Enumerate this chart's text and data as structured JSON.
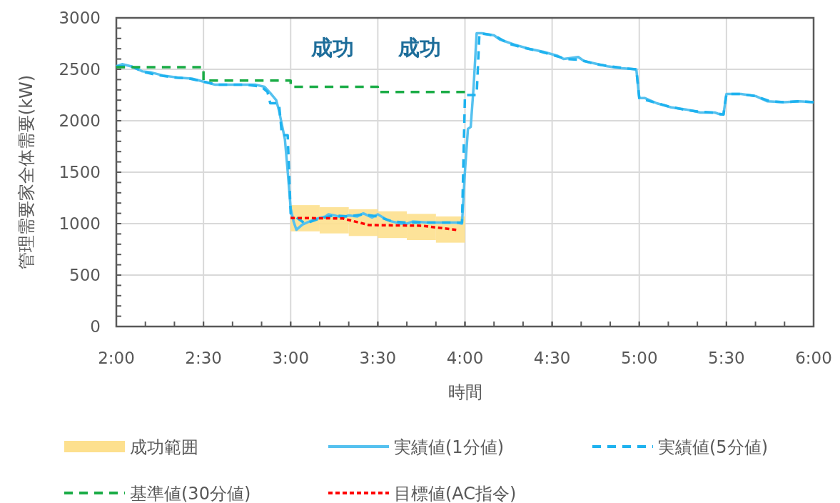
{
  "chart_data": {
    "type": "line",
    "xlabel": "時間",
    "ylabel": "管理需要家全体需要(kW)",
    "xlim": [
      2,
      6
    ],
    "ylim": [
      0,
      3000
    ],
    "xticks": [
      {
        "value": 2,
        "label": "2:00"
      },
      {
        "value": 2.5,
        "label": "2:30"
      },
      {
        "value": 3,
        "label": "3:00"
      },
      {
        "value": 3.5,
        "label": "3:30"
      },
      {
        "value": 4,
        "label": "4:00"
      },
      {
        "value": 4.5,
        "label": "4:30"
      },
      {
        "value": 5,
        "label": "5:00"
      },
      {
        "value": 5.5,
        "label": "5:30"
      },
      {
        "value": 6,
        "label": "6:00"
      }
    ],
    "yticks": [
      0,
      500,
      1000,
      1500,
      2000,
      2500,
      3000
    ],
    "grid": true,
    "legend": "bottom",
    "annotations": [
      "成功",
      "成功"
    ],
    "series": [
      {
        "name": "成功範囲",
        "type": "bar",
        "color": "#fde08e",
        "x": [
          3.083,
          3.25,
          3.417,
          3.583,
          3.75,
          3.917
        ],
        "base": [
          925,
          905,
          880,
          860,
          840,
          815
        ],
        "values": [
          255,
          255,
          260,
          260,
          255,
          255
        ]
      },
      {
        "name": "実績値(1分値)",
        "color": "#55c1ef",
        "line_style": "solid",
        "x": [
          2,
          2.033,
          2.083,
          2.15,
          2.2,
          2.267,
          2.35,
          2.433,
          2.5,
          2.567,
          2.65,
          2.733,
          2.8,
          2.85,
          2.883,
          2.917,
          2.933,
          2.95,
          2.967,
          2.983,
          3,
          3.017,
          3.033,
          3.067,
          3.133,
          3.2,
          3.217,
          3.25,
          3.3,
          3.333,
          3.383,
          3.417,
          3.467,
          3.5,
          3.55,
          3.583,
          3.633,
          3.667,
          3.7,
          3.783,
          3.867,
          3.95,
          3.983,
          4,
          4.017,
          4.033,
          4.05,
          4.067,
          4.1,
          4.167,
          4.2,
          4.283,
          4.367,
          4.45,
          4.533,
          4.567,
          4.65,
          4.683,
          4.817,
          4.9,
          4.983,
          5,
          5.033,
          5.1,
          5.183,
          5.267,
          5.35,
          5.433,
          5.467,
          5.483,
          5.5,
          5.583,
          5.667,
          5.733,
          5.833,
          5.917,
          6
        ],
        "values": [
          2530,
          2550,
          2530,
          2480,
          2470,
          2440,
          2420,
          2410,
          2380,
          2350,
          2350,
          2350,
          2350,
          2330,
          2270,
          2200,
          2100,
          1960,
          1820,
          1510,
          1150,
          1020,
          940,
          990,
          1040,
          1070,
          1090,
          1080,
          1060,
          1080,
          1070,
          1100,
          1060,
          1090,
          1040,
          1020,
          1000,
          1000,
          1020,
          1010,
          1010,
          1010,
          1000,
          1510,
          1920,
          1940,
          2340,
          2850,
          2850,
          2830,
          2790,
          2740,
          2700,
          2670,
          2630,
          2600,
          2620,
          2580,
          2530,
          2510,
          2500,
          2220,
          2220,
          2170,
          2130,
          2110,
          2080,
          2080,
          2060,
          2060,
          2260,
          2260,
          2240,
          2190,
          2180,
          2190,
          2180
        ]
      },
      {
        "name": "実績値(5分値)",
        "color": "#1eb2ef",
        "line_style": "dashed",
        "x": [
          2,
          2.083,
          2.167,
          2.25,
          2.333,
          2.417,
          2.5,
          2.583,
          2.667,
          2.75,
          2.833,
          2.867,
          2.883,
          2.933,
          2.95,
          2.983,
          3,
          3.083,
          3.167,
          3.25,
          3.333,
          3.417,
          3.5,
          3.583,
          3.667,
          3.75,
          3.833,
          3.917,
          3.983,
          4,
          4.067,
          4.083,
          4.167,
          4.25,
          4.333,
          4.417,
          4.5,
          4.583,
          4.667,
          4.75,
          4.833,
          4.917,
          4.983,
          5,
          5.083,
          5.167,
          5.25,
          5.333,
          5.417,
          5.483,
          5.5,
          5.583,
          5.667,
          5.75,
          5.833,
          5.917,
          6
        ],
        "values": [
          2530,
          2530,
          2470,
          2440,
          2420,
          2410,
          2380,
          2350,
          2350,
          2350,
          2330,
          2280,
          2170,
          2170,
          1860,
          1860,
          1100,
          1000,
          1050,
          1080,
          1070,
          1090,
          1070,
          1020,
          1010,
          1010,
          1010,
          1010,
          1010,
          2250,
          2250,
          2850,
          2830,
          2750,
          2710,
          2680,
          2640,
          2600,
          2590,
          2550,
          2530,
          2510,
          2500,
          2220,
          2180,
          2140,
          2110,
          2090,
          2080,
          2060,
          2260,
          2260,
          2240,
          2190,
          2180,
          2190,
          2180
        ]
      },
      {
        "name": "基準値(30分値)",
        "color": "#1aac46",
        "line_style": "dashed",
        "x": [
          2,
          2.5,
          2.5,
          3,
          3,
          3.5,
          3.5,
          4
        ],
        "values": [
          2520,
          2520,
          2390,
          2390,
          2330,
          2330,
          2280,
          2280
        ]
      },
      {
        "name": "目標値(AC指令)",
        "color": "#ff0000",
        "line_style": "dotted",
        "x": [
          3,
          3.3,
          3.45,
          3.75,
          3.95
        ],
        "values": [
          1055,
          1050,
          986,
          980,
          940
        ]
      }
    ]
  }
}
